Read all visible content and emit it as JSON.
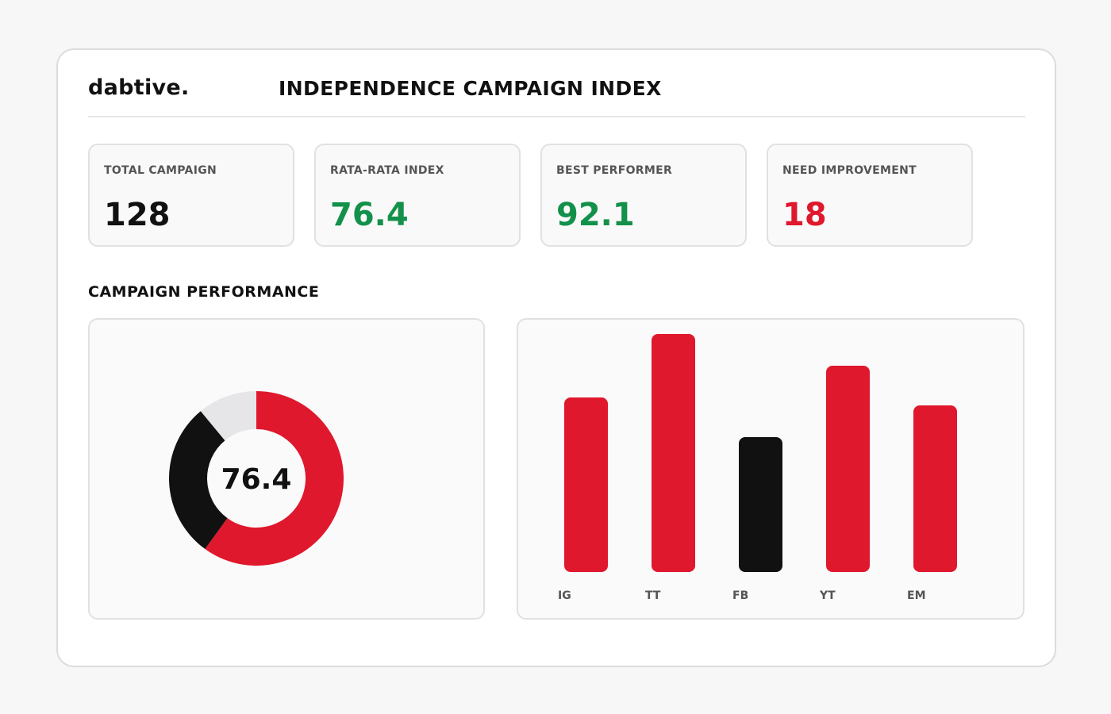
{
  "header": {
    "logo": "dabtive.",
    "title": "INDEPENDENCE CAMPAIGN INDEX"
  },
  "stats": [
    {
      "label": "TOTAL CAMPAIGN",
      "value": "128",
      "color": "#111111"
    },
    {
      "label": "RATA-RATA INDEX",
      "value": "76.4",
      "color": "#13914a"
    },
    {
      "label": "BEST PERFORMER",
      "value": "92.1",
      "color": "#13914a"
    },
    {
      "label": "NEED IMPROVEMENT",
      "value": "18",
      "color": "#e0182d"
    }
  ],
  "section": {
    "title": "CAMPAIGN PERFORMANCE"
  },
  "colors": {
    "red": "#e0182d",
    "black": "#111111",
    "light": "#e6e6e8"
  },
  "chart_data": [
    {
      "type": "pie",
      "center_label": "76.4",
      "slices": [
        {
          "value": 60,
          "color": "#e0182d"
        },
        {
          "value": 29,
          "color": "#111111"
        },
        {
          "value": 11,
          "color": "#e6e6e8"
        }
      ]
    },
    {
      "type": "bar",
      "categories": [
        "IG",
        "TT",
        "FB",
        "YT",
        "EM"
      ],
      "values": [
        22,
        30,
        17,
        26,
        21
      ],
      "colors": [
        "#e0182d",
        "#e0182d",
        "#111111",
        "#e0182d",
        "#e0182d"
      ],
      "ylim": [
        0,
        30
      ]
    }
  ]
}
